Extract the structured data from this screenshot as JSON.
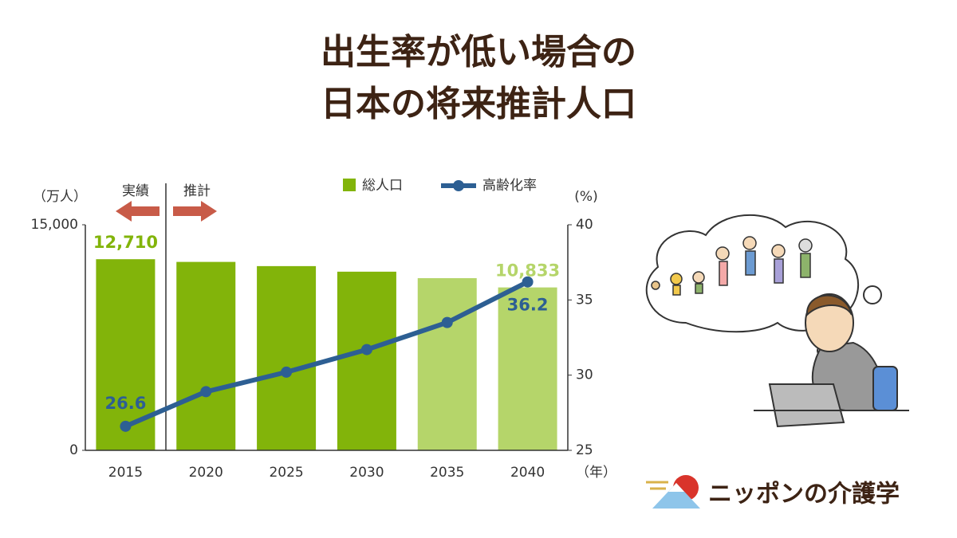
{
  "chart_data": {
    "type": "bar-line",
    "title": [
      "出生率が低い場合の",
      "日本の将来推計人口"
    ],
    "categories": [
      "2015",
      "2020",
      "2025",
      "2030",
      "2035",
      "2040"
    ],
    "x_unit": "（年）",
    "y_unit": "（万人）",
    "y2_unit": "(%)",
    "annotations": [
      "実績",
      "推計"
    ],
    "series": [
      {
        "name": "総人口",
        "type": "bar",
        "color": "#82b40a",
        "colors": [
          "#82b40a",
          "#82b40a",
          "#82b40a",
          "#82b40a",
          "#b5d56a",
          "#b5d56a"
        ],
        "values": [
          12710,
          12530,
          12250,
          11880,
          11450,
          10833
        ],
        "value_labels": [
          "12,710",
          null,
          null,
          null,
          null,
          "10,833"
        ]
      },
      {
        "name": "高齢化率",
        "type": "line",
        "axis": "y2",
        "color": "#2d5f93",
        "values": [
          26.6,
          28.9,
          30.2,
          31.7,
          33.5,
          36.2
        ],
        "value_labels": [
          "26.6",
          null,
          null,
          null,
          null,
          "36.2"
        ]
      }
    ],
    "ylim": [
      0,
      15000
    ],
    "yticks": [
      0,
      {
        "value": 15000,
        "label": "15,000"
      }
    ],
    "y2lim": [
      25,
      40
    ],
    "y2ticks": [
      25,
      30,
      35,
      40
    ],
    "brand": "ニッポンの介護学"
  }
}
